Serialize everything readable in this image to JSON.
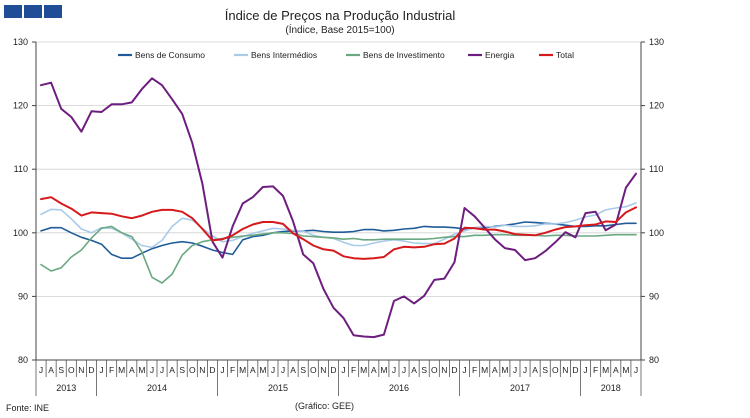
{
  "chart_data": {
    "type": "line",
    "title": "Índice de Preços na Produção Industrial",
    "subtitle": "(Índice, Base 2015=100)",
    "xlabel": "",
    "ylabel": "",
    "ylim": [
      80,
      130
    ],
    "yticks": [
      80,
      90,
      100,
      110,
      120,
      130
    ],
    "month_labels": [
      "J",
      "A",
      "S",
      "O",
      "N",
      "D",
      "J",
      "F",
      "M",
      "A",
      "M",
      "J",
      "J",
      "A",
      "S",
      "O",
      "N",
      "D",
      "J",
      "F",
      "M",
      "A",
      "M",
      "J",
      "J",
      "A",
      "S",
      "O",
      "N",
      "D",
      "J",
      "F",
      "M",
      "A",
      "M",
      "J",
      "J",
      "A",
      "S",
      "O",
      "N",
      "D",
      "J",
      "F",
      "M",
      "A",
      "M",
      "J",
      "J",
      "A",
      "S",
      "O",
      "N",
      "D",
      "J",
      "F",
      "M",
      "A",
      "M",
      "J"
    ],
    "years": [
      {
        "label": "2013",
        "start": 0,
        "end": 6
      },
      {
        "label": "2014",
        "start": 6,
        "end": 18
      },
      {
        "label": "2015",
        "start": 18,
        "end": 30
      },
      {
        "label": "2016",
        "start": 30,
        "end": 42
      },
      {
        "label": "2017",
        "start": 42,
        "end": 54
      },
      {
        "label": "2018",
        "start": 54,
        "end": 60
      }
    ],
    "legend_position": "top",
    "series": [
      {
        "name": "Bens de Consumo",
        "color": "#1f5c99",
        "values": [
          100.3,
          100.8,
          100.8,
          100.0,
          99.3,
          98.8,
          98.2,
          96.6,
          96.0,
          96.0,
          96.8,
          97.5,
          98.0,
          98.4,
          98.6,
          98.4,
          97.9,
          97.3,
          96.9,
          96.6,
          98.9,
          99.4,
          99.6,
          100.0,
          100.2,
          100.3,
          100.3,
          100.4,
          100.2,
          100.1,
          100.1,
          100.2,
          100.5,
          100.5,
          100.3,
          100.4,
          100.6,
          100.7,
          101.0,
          100.9,
          100.9,
          100.8,
          100.6,
          100.8,
          100.8,
          101.0,
          101.2,
          101.4,
          101.7,
          101.6,
          101.5,
          101.4,
          101.2,
          101.0,
          101.0,
          101.1,
          101.1,
          101.3,
          101.5,
          101.5
        ]
      },
      {
        "name": "Bens Intermédios",
        "color": "#a9cbe8",
        "values": [
          102.9,
          103.7,
          103.6,
          102.2,
          100.6,
          100.0,
          100.8,
          100.7,
          100.0,
          99.0,
          98.0,
          97.7,
          98.8,
          101.0,
          102.3,
          102.0,
          100.7,
          99.5,
          98.6,
          98.8,
          99.4,
          99.9,
          100.3,
          100.7,
          100.6,
          100.4,
          100.3,
          99.6,
          99.3,
          99.1,
          98.5,
          98.0,
          98.0,
          98.4,
          98.7,
          98.9,
          98.7,
          98.4,
          98.3,
          98.3,
          99.0,
          99.8,
          100.3,
          100.8,
          101.0,
          100.9,
          101.2,
          101.0,
          101.0,
          101.1,
          101.4,
          101.4,
          101.6,
          102.0,
          102.5,
          102.8,
          103.6,
          103.9,
          104.1,
          104.7
        ]
      },
      {
        "name": "Bens de Investimento",
        "color": "#6aa882",
        "values": [
          95.0,
          94.0,
          94.5,
          96.2,
          97.3,
          99.2,
          100.7,
          101.0,
          100.0,
          99.4,
          97.0,
          93.0,
          92.1,
          93.5,
          96.5,
          98.0,
          98.6,
          98.9,
          99.1,
          99.3,
          99.5,
          99.6,
          99.8,
          100.0,
          100.0,
          99.9,
          99.5,
          99.4,
          99.3,
          99.2,
          99.0,
          99.1,
          98.9,
          98.9,
          99.0,
          99.0,
          99.0,
          99.0,
          99.0,
          99.1,
          99.3,
          99.4,
          99.4,
          99.6,
          99.6,
          99.7,
          99.7,
          99.6,
          99.6,
          99.6,
          99.5,
          99.6,
          99.6,
          99.5,
          99.5,
          99.5,
          99.6,
          99.7,
          99.7,
          99.7
        ]
      },
      {
        "name": "Energia",
        "color": "#6d1e7e",
        "values": [
          123.2,
          123.6,
          119.5,
          118.2,
          115.9,
          119.1,
          119.0,
          120.2,
          120.2,
          120.5,
          122.6,
          124.3,
          123.2,
          121.0,
          118.7,
          114.1,
          107.7,
          98.6,
          96.1,
          101.0,
          104.6,
          105.6,
          107.2,
          107.3,
          105.8,
          101.8,
          96.6,
          95.2,
          91.2,
          88.2,
          86.6,
          83.9,
          83.7,
          83.6,
          84.0,
          89.3,
          90.0,
          88.9,
          90.1,
          92.6,
          92.8,
          95.4,
          103.9,
          102.6,
          100.8,
          99.0,
          97.6,
          97.3,
          95.7,
          96.0,
          97.1,
          98.5,
          100.1,
          99.3,
          103.1,
          103.3,
          100.4,
          101.3,
          107.1,
          109.3
        ]
      },
      {
        "name": "Total",
        "color": "#d7191c",
        "values": [
          105.3,
          105.6,
          104.6,
          103.8,
          102.7,
          103.2,
          103.1,
          103.0,
          102.6,
          102.3,
          102.7,
          103.3,
          103.6,
          103.6,
          103.3,
          102.3,
          100.6,
          98.8,
          99.0,
          99.6,
          100.6,
          101.3,
          101.7,
          101.7,
          101.4,
          99.9,
          99.0,
          98.0,
          97.4,
          97.2,
          96.3,
          96.0,
          95.9,
          96.0,
          96.2,
          97.4,
          97.8,
          97.7,
          97.8,
          98.2,
          98.3,
          99.1,
          100.8,
          100.7,
          100.5,
          100.5,
          100.2,
          99.8,
          99.7,
          99.6,
          100.0,
          100.5,
          100.9,
          101.0,
          101.2,
          101.3,
          101.8,
          101.7,
          103.2,
          104.0
        ]
      }
    ]
  },
  "footer": {
    "source": "Fonte: INE",
    "credit": "(Gráfico: GEE)"
  }
}
